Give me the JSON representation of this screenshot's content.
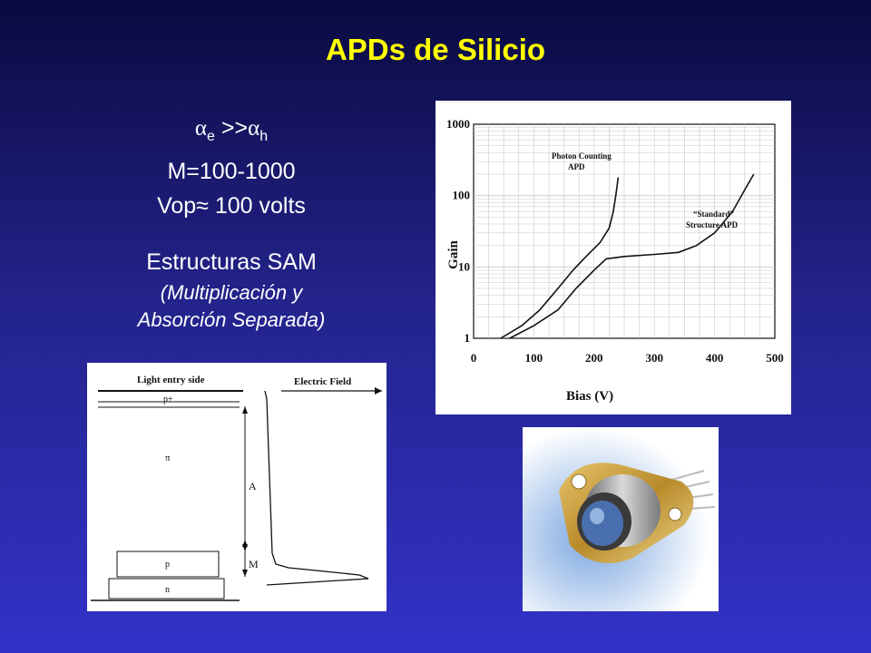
{
  "slide": {
    "title": "APDs de Silicio",
    "bullets": {
      "alpha_line": {
        "alpha_e": "α",
        "sub_e": "e",
        "op": " >>",
        "alpha_h": "α",
        "sub_h": "h"
      },
      "gain_line": "M=100-1000",
      "vop_line": {
        "label": "Vop",
        "approx": "≈",
        "value": " 100 volts"
      },
      "structures": "Estructuras SAM",
      "structures_detail_1": "(Multiplicación y",
      "structures_detail_2": "Absorción Separada)"
    }
  },
  "field_diagram": {
    "light_label": "Light entry side",
    "field_label": "Electric Field",
    "p_plus": "p+",
    "pi": "π",
    "p": "p",
    "n": "n",
    "zone_a": "A",
    "zone_m": "M"
  },
  "chart_data": {
    "type": "line",
    "xlabel": "Bias (V)",
    "ylabel": "Gain",
    "xlim": [
      0,
      500
    ],
    "ylim": [
      1,
      1000
    ],
    "yscale": "log",
    "grid": true,
    "x_ticks": [
      "0",
      "100",
      "200",
      "300",
      "400",
      "500"
    ],
    "y_ticks": [
      "1",
      "10",
      "100",
      "1000"
    ],
    "annotations": [
      {
        "text": "Photon Counting",
        "text2": "APD"
      },
      {
        "text": "“Standard”",
        "text2": "Structure APD"
      }
    ],
    "series": [
      {
        "name": "Photon Counting APD",
        "x": [
          45,
          80,
          110,
          140,
          165,
          190,
          210,
          225,
          232,
          236,
          240
        ],
        "y": [
          1,
          1.5,
          2.5,
          5,
          9,
          15,
          22,
          35,
          60,
          100,
          180
        ]
      },
      {
        "name": "Standard Structure APD",
        "x": [
          60,
          100,
          140,
          170,
          200,
          220,
          250,
          300,
          340,
          370,
          400,
          430,
          450,
          465
        ],
        "y": [
          1,
          1.5,
          2.5,
          5,
          9,
          13,
          14,
          15,
          16,
          20,
          30,
          60,
          120,
          200
        ]
      }
    ]
  },
  "photo": {
    "label": "APD device photo"
  }
}
